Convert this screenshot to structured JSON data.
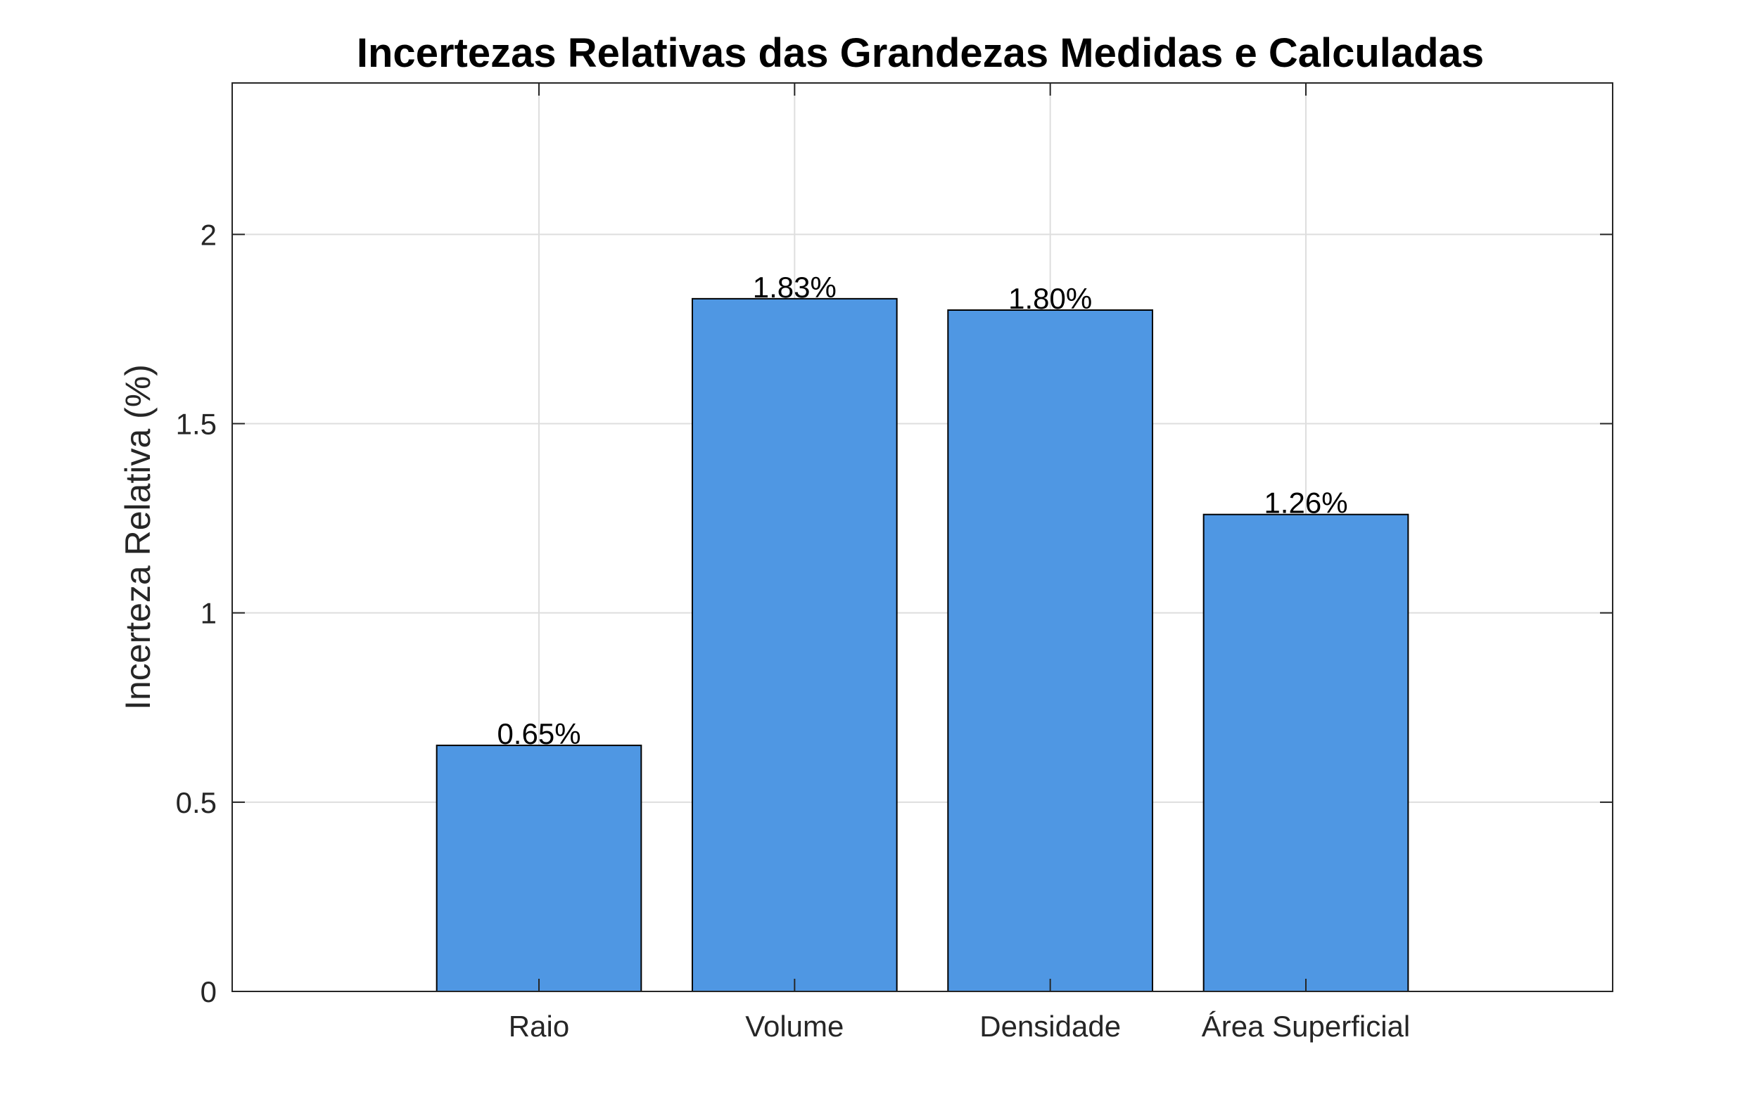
{
  "chart_data": {
    "type": "bar",
    "title": "Incertezas Relativas das Grandezas Medidas e Calculadas",
    "xlabel": "",
    "ylabel": "Incerteza Relativa (%)",
    "categories": [
      "Raio",
      "Volume",
      "Densidade",
      "Área Superficial"
    ],
    "values": [
      0.65,
      1.83,
      1.8,
      1.26
    ],
    "data_labels": [
      "0.65%",
      "1.83%",
      "1.80%",
      "1.26%"
    ],
    "ylim": [
      0,
      2.4
    ],
    "xlim": [
      -0.2,
      5.2
    ],
    "yticks": [
      0,
      0.5,
      1,
      1.5,
      2
    ],
    "ytick_labels": [
      "0",
      "0.5",
      "1",
      "1.5",
      "2"
    ],
    "grid": true,
    "bar_color": "#4f97e3"
  }
}
